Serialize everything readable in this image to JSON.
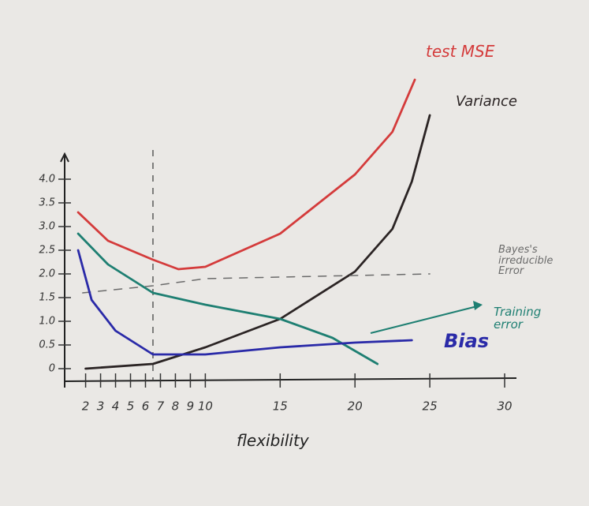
{
  "chart_data": {
    "type": "line",
    "x_label": "flexibility",
    "xlim": [
      0.6,
      30
    ],
    "xticks": [
      2,
      3,
      4,
      5,
      6,
      7,
      8,
      9,
      10,
      15,
      20,
      25,
      30
    ],
    "ylim": [
      -0.4,
      6.2
    ],
    "yticks": [
      0,
      {
        "value": 0.5,
        "label": "0.5"
      },
      {
        "value": 1,
        "label": "1.0"
      },
      {
        "value": 1.5,
        "label": "1.5"
      },
      {
        "value": 2,
        "label": "2.0"
      },
      {
        "value": 2.5,
        "label": "2.5"
      },
      {
        "value": 3,
        "label": "3.0"
      },
      {
        "value": 3.5,
        "label": "3.5"
      },
      {
        "value": 4,
        "label": "4.0"
      }
    ],
    "vline": 6.5,
    "series": [
      {
        "name": "test MSE",
        "color": "#d43b3b",
        "x": [
          1.5,
          3.5,
          6.5,
          8.2,
          10,
          15,
          20,
          22.5,
          24
        ],
        "values": [
          3.3,
          2.7,
          2.3,
          2.1,
          2.15,
          2.85,
          4.1,
          5.0,
          6.1
        ]
      },
      {
        "name": "Variance",
        "color": "#2b2424",
        "x": [
          2,
          6.5,
          10,
          15,
          20,
          22.5,
          23.8,
          25
        ],
        "values": [
          0,
          0.1,
          0.45,
          1.05,
          2.05,
          2.95,
          3.95,
          5.35
        ]
      },
      {
        "name": "Bayes's irreducible Error",
        "color": "#6b6b6b",
        "dashed": true,
        "x": [
          1.8,
          6.5,
          10,
          25
        ],
        "values": [
          1.6,
          1.75,
          1.9,
          2.0
        ]
      },
      {
        "name": "Training error",
        "color": "#1e7f72",
        "x": [
          1.5,
          3.5,
          6.5,
          10,
          15,
          18.5,
          21.5
        ],
        "values": [
          2.85,
          2.2,
          1.6,
          1.35,
          1.05,
          0.65,
          0.1
        ]
      },
      {
        "name": "Bias",
        "color": "#2a2aa8",
        "x": [
          1.5,
          2.4,
          4,
          6.5,
          10,
          15,
          20,
          23.8
        ],
        "values": [
          2.5,
          1.45,
          0.8,
          0.3,
          0.3,
          0.45,
          0.55,
          0.6
        ]
      }
    ]
  }
}
